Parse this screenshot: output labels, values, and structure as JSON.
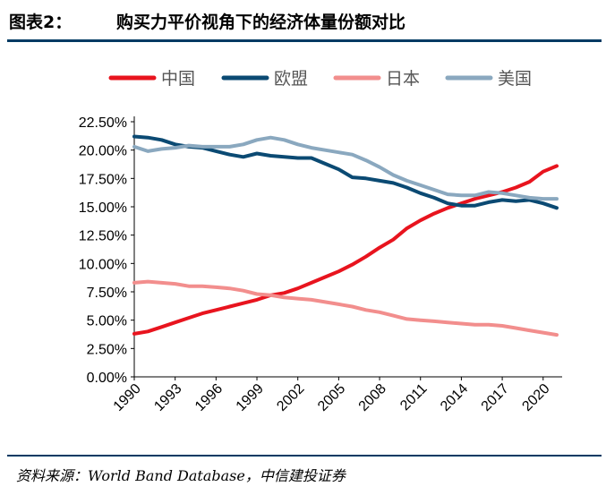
{
  "figure": {
    "label": "图表2：",
    "title": "购买力平价视角下的经济体量份额对比"
  },
  "source": "资料来源：World Band Database，中信建投证券",
  "chart_data": {
    "type": "line",
    "ylim": [
      0,
      22.5
    ],
    "y_ticks": [
      "0.00%",
      "2.50%",
      "5.00%",
      "7.50%",
      "10.00%",
      "12.50%",
      "15.00%",
      "17.50%",
      "20.00%",
      "22.50%"
    ],
    "x_ticks": [
      "1990",
      "1993",
      "1996",
      "1999",
      "2002",
      "2005",
      "2008",
      "2011",
      "2014",
      "2017",
      "2020"
    ],
    "x": [
      1990,
      1991,
      1992,
      1993,
      1994,
      1995,
      1996,
      1997,
      1998,
      1999,
      2000,
      2001,
      2002,
      2003,
      2004,
      2005,
      2006,
      2007,
      2008,
      2009,
      2010,
      2011,
      2012,
      2013,
      2014,
      2015,
      2016,
      2017,
      2018,
      2019,
      2020,
      2021
    ],
    "legend_position": "top",
    "series": [
      {
        "name": "中国",
        "color": "#e8141e",
        "values": [
          3.8,
          4.0,
          4.4,
          4.8,
          5.2,
          5.6,
          5.9,
          6.2,
          6.5,
          6.8,
          7.2,
          7.4,
          7.8,
          8.3,
          8.8,
          9.3,
          9.9,
          10.6,
          11.4,
          12.1,
          13.1,
          13.8,
          14.4,
          14.9,
          15.3,
          15.7,
          16.0,
          16.3,
          16.7,
          17.2,
          18.1,
          18.6
        ]
      },
      {
        "name": "欧盟",
        "color": "#0b4a73",
        "values": [
          21.2,
          21.1,
          20.9,
          20.5,
          20.3,
          20.2,
          19.9,
          19.6,
          19.4,
          19.7,
          19.5,
          19.4,
          19.3,
          19.3,
          18.8,
          18.3,
          17.6,
          17.5,
          17.3,
          17.1,
          16.7,
          16.2,
          15.8,
          15.3,
          15.1,
          15.1,
          15.4,
          15.6,
          15.5,
          15.6,
          15.3,
          14.9
        ]
      },
      {
        "name": "日本",
        "color": "#f28e8d",
        "values": [
          8.3,
          8.4,
          8.3,
          8.2,
          8.0,
          8.0,
          7.9,
          7.8,
          7.6,
          7.3,
          7.2,
          7.0,
          6.9,
          6.8,
          6.6,
          6.4,
          6.2,
          5.9,
          5.7,
          5.4,
          5.1,
          5.0,
          4.9,
          4.8,
          4.7,
          4.6,
          4.6,
          4.5,
          4.3,
          4.1,
          3.9,
          3.7
        ]
      },
      {
        "name": "美国",
        "color": "#8aa8bf",
        "values": [
          20.3,
          19.9,
          20.1,
          20.2,
          20.4,
          20.3,
          20.3,
          20.3,
          20.5,
          20.9,
          21.1,
          20.9,
          20.5,
          20.2,
          20.0,
          19.8,
          19.6,
          19.1,
          18.5,
          17.8,
          17.3,
          16.9,
          16.5,
          16.1,
          16.0,
          16.0,
          16.3,
          16.2,
          16.0,
          15.8,
          15.7,
          15.7
        ]
      }
    ]
  }
}
